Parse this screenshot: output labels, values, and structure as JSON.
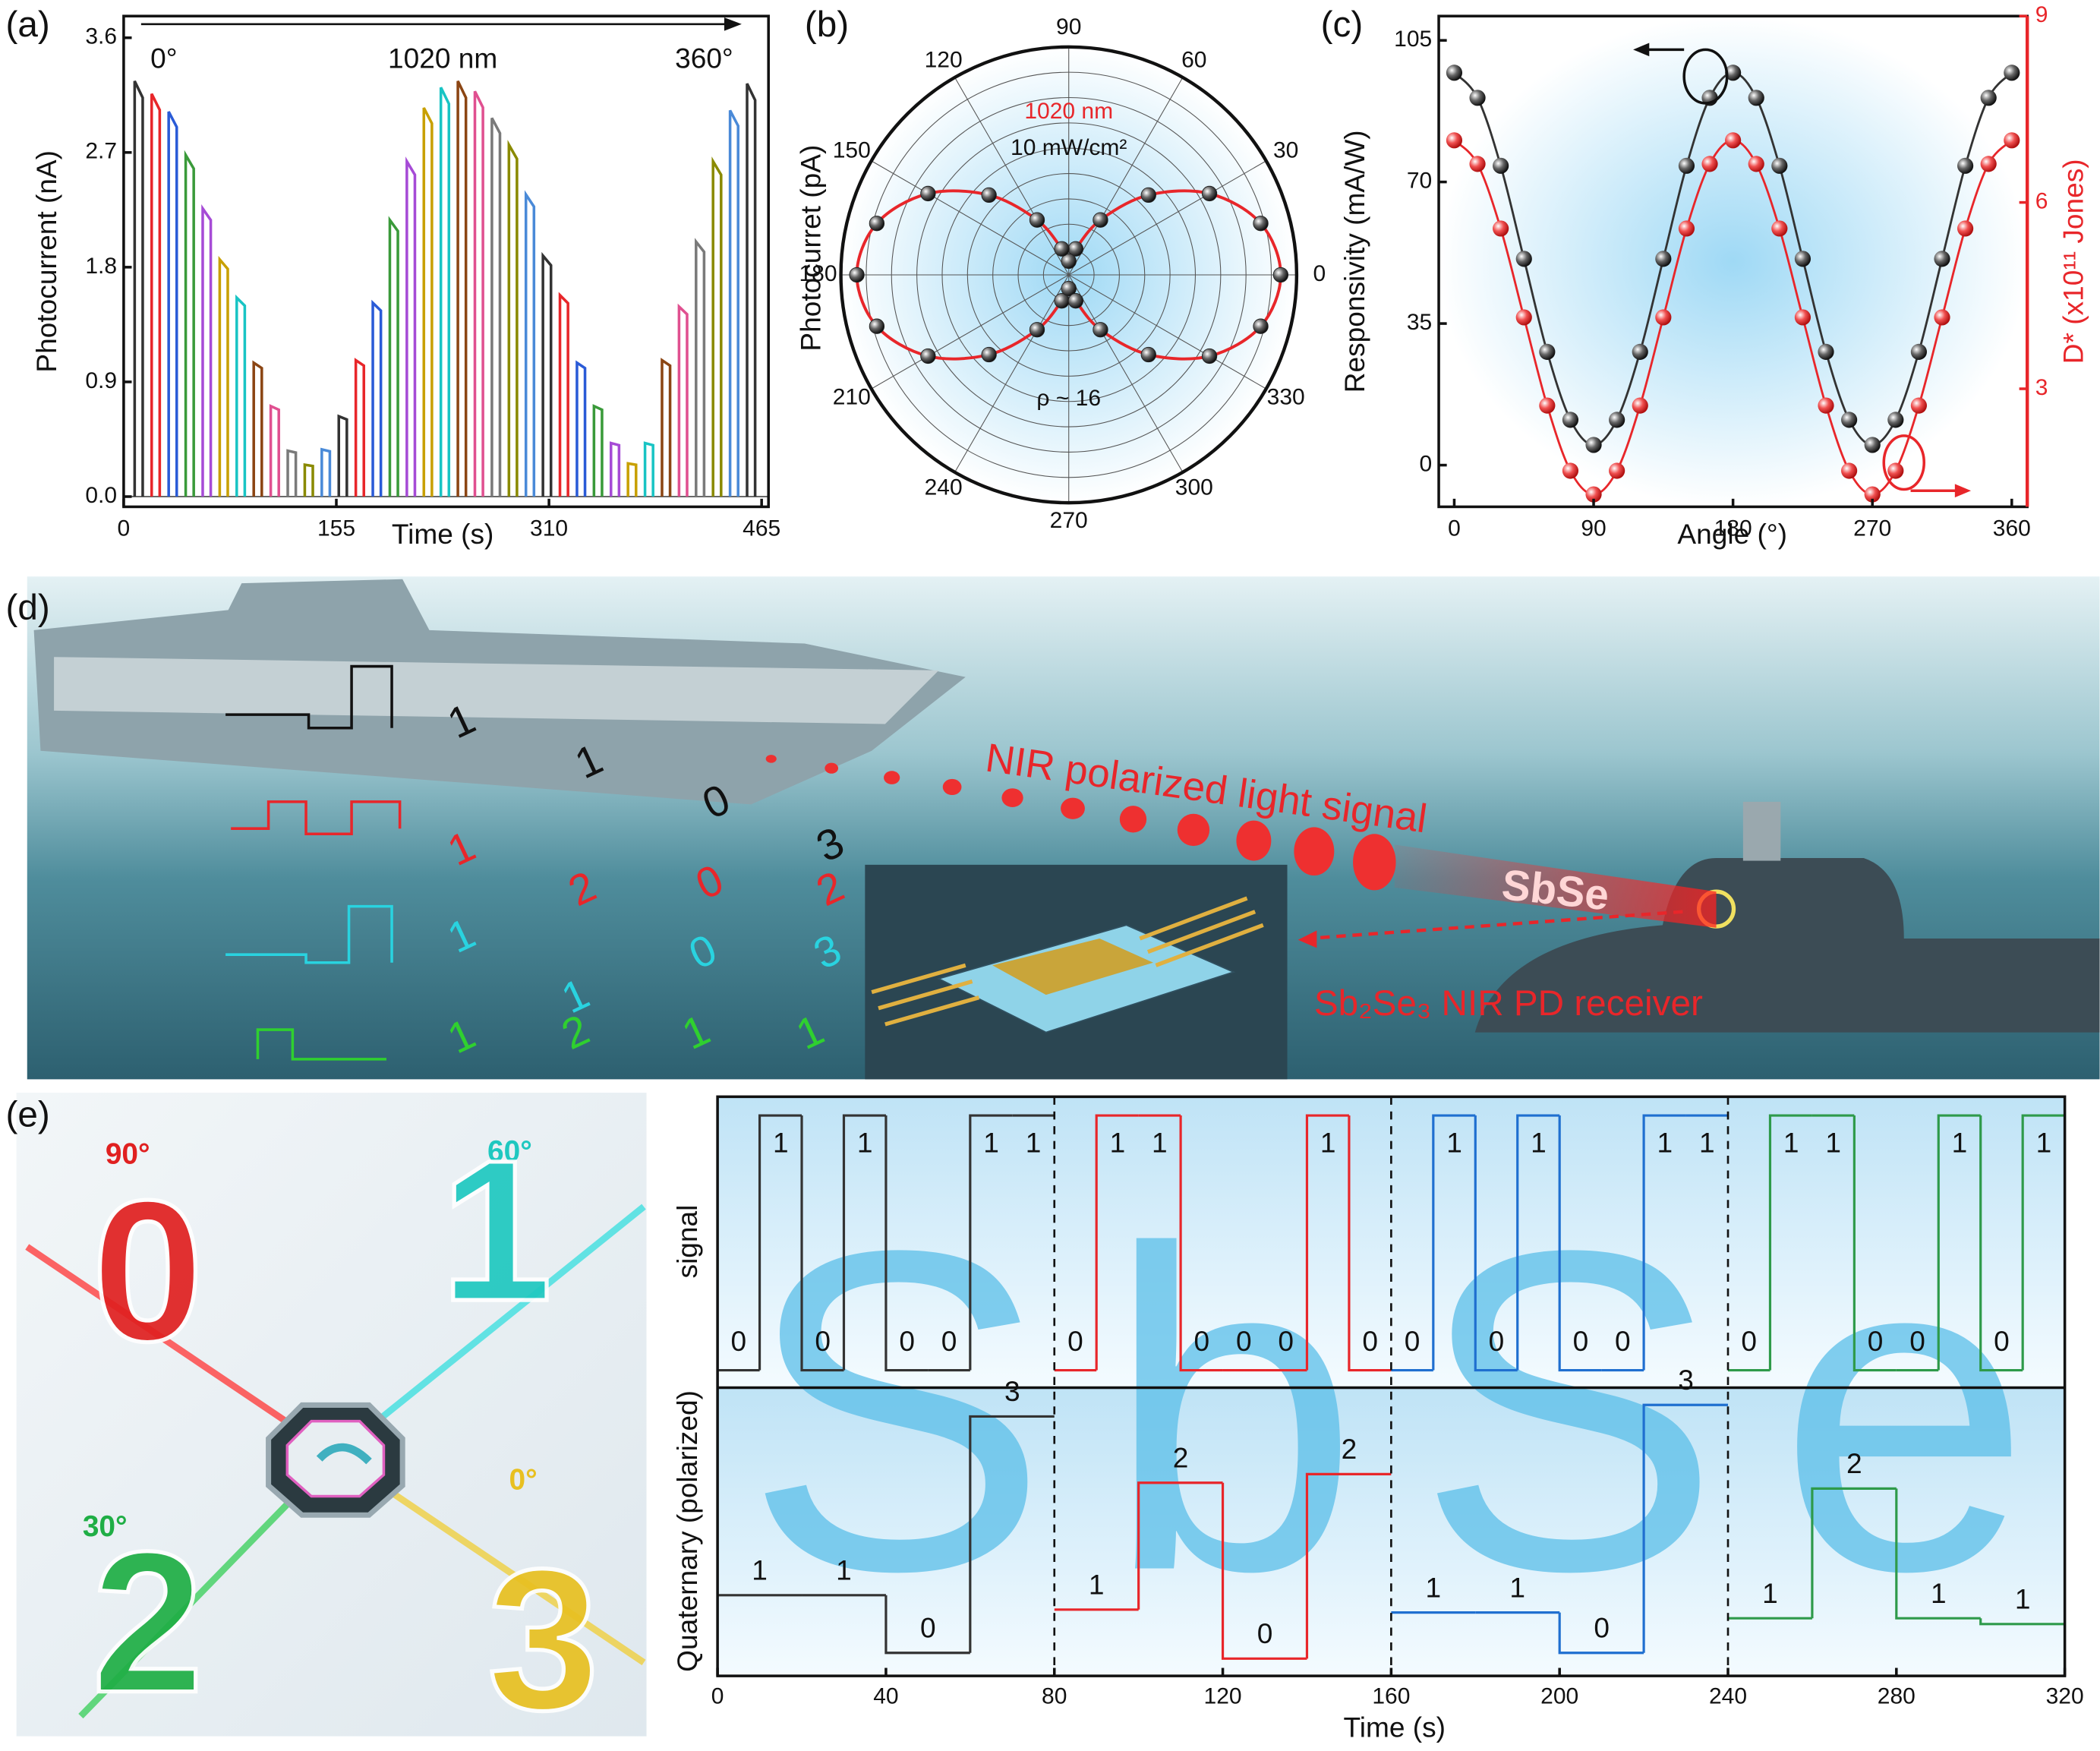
{
  "panel_labels": [
    "(a)",
    "(b)",
    "(c)",
    "(d)",
    "(e)"
  ],
  "chart_data": [
    {
      "type": "pulse",
      "xlabel": "Time (s)",
      "ylabel": "Photocurrent (nA)",
      "annotations": [
        "0°",
        "1020 nm",
        "360°"
      ],
      "x": [
        8,
        20.4,
        32.8,
        45.2,
        57.6,
        70,
        82.4,
        94.8,
        107.2,
        119.6,
        132,
        144.4,
        156.8,
        169.2,
        181.6,
        194,
        206.4,
        218.8,
        231.2,
        243.6,
        256,
        268.4,
        280.8,
        293.2,
        305.6,
        318,
        330.4,
        342.8,
        355.2,
        367.6,
        380,
        392.4,
        404.8,
        417.2,
        429.6,
        442,
        454.4
      ],
      "values": [
        3.26,
        3.16,
        3.02,
        2.68,
        2.26,
        1.86,
        1.56,
        1.05,
        0.71,
        0.36,
        0.25,
        0.37,
        0.63,
        1.07,
        1.52,
        2.17,
        2.63,
        3.05,
        3.21,
        3.26,
        3.18,
        2.97,
        2.76,
        2.37,
        1.89,
        1.58,
        1.05,
        0.71,
        0.42,
        0.26,
        0.42,
        1.07,
        1.49,
        2.0,
        2.63,
        3.03,
        3.24
      ],
      "palette": [
        "#333333",
        "#e8262a",
        "#2a5bd7",
        "#3a9a3a",
        "#a64bd6",
        "#c8a000",
        "#19c4c4",
        "#8b4513",
        "#e05090",
        "#7a7a7a",
        "#8a8a00",
        "#4a8ad8"
      ],
      "xlim": [
        0,
        470
      ],
      "xticks": [
        0,
        155,
        310,
        465
      ],
      "ylim": [
        -0.08,
        3.77
      ],
      "yticks": [
        {
          "value": 0,
          "label": "0.0"
        },
        0.9,
        1.8,
        2.7,
        3.6
      ]
    },
    {
      "type": "polar",
      "ylabel": "Photocurret (pA)",
      "annotations": [
        "1020 nm",
        "10 mW/cm²",
        "ρ ~ 16"
      ],
      "theta": [
        0,
        15,
        30,
        45,
        60,
        75,
        90,
        105,
        120,
        135,
        150,
        165,
        180,
        195,
        210,
        225,
        240,
        255,
        270,
        285,
        300,
        315,
        330,
        345
      ],
      "values": [
        0.93,
        0.872,
        0.713,
        0.495,
        0.278,
        0.118,
        0.06,
        0.118,
        0.278,
        0.495,
        0.713,
        0.872,
        0.93,
        0.872,
        0.713,
        0.495,
        0.278,
        0.118,
        0.06,
        0.118,
        0.278,
        0.495,
        0.713,
        0.872
      ],
      "rlim": [
        0,
        1
      ],
      "thetaticks": [
        0,
        30,
        60,
        90,
        120,
        150,
        180,
        210,
        240,
        270,
        300,
        330
      ],
      "color": "#222222",
      "line_color": "#e8262a",
      "grid": true
    },
    {
      "type": "scatter-line",
      "xlabel": "Angle (°)",
      "ylabel": "Responsivity (mA/W)",
      "y2label": "D* (x10¹¹ Jones)",
      "x": [
        0,
        15,
        30,
        45,
        60,
        75,
        90,
        105,
        120,
        135,
        150,
        165,
        180,
        195,
        210,
        225,
        240,
        255,
        270,
        285,
        300,
        315,
        330,
        345,
        360
      ],
      "series": [
        {
          "color": "#333333",
          "values": [
            97,
            90.8,
            74,
            51,
            28,
            11.2,
            5,
            11.2,
            28,
            51,
            74,
            90.8,
            97,
            90.8,
            74,
            51,
            28,
            11.2,
            5,
            11.2,
            28,
            51,
            74,
            90.8,
            97
          ]
        },
        {
          "color": "#e8262a",
          "axis": "y2",
          "values": [
            7.0,
            6.62,
            5.58,
            4.15,
            2.73,
            1.68,
            1.3,
            1.68,
            2.73,
            4.15,
            5.58,
            6.62,
            7.0,
            6.62,
            5.58,
            4.15,
            2.73,
            1.68,
            1.3,
            1.68,
            2.73,
            4.15,
            5.58,
            6.62,
            7.0
          ]
        }
      ],
      "xlim": [
        -10,
        370
      ],
      "xticks": [
        0,
        90,
        180,
        270,
        360
      ],
      "ylim": [
        -10.3,
        111
      ],
      "yticks": [
        0,
        35,
        70,
        105
      ],
      "y2lim": [
        1.1,
        9
      ],
      "y2ticks": [
        3,
        6,
        9
      ]
    },
    {
      "type": "digital",
      "xlabel": "Time (s)",
      "ylabels": [
        "signal",
        "Quaternary (polarized)"
      ],
      "watermark": "SbSe",
      "bits": [
        [
          0,
          1,
          0,
          1,
          0,
          0,
          1,
          1
        ],
        [
          0,
          1,
          1,
          0,
          0,
          0,
          1,
          0
        ],
        [
          0,
          1,
          0,
          1,
          0,
          0,
          1,
          1
        ],
        [
          0,
          1,
          1,
          0,
          0,
          1,
          0,
          1
        ]
      ],
      "levels": [
        [
          1,
          1,
          0,
          3
        ],
        [
          1,
          2,
          0,
          2
        ],
        [
          1,
          1,
          0,
          3
        ],
        [
          1,
          2,
          1,
          1
        ]
      ],
      "current": [
        [
          0.28,
          0.28,
          0.08,
          0.9
        ],
        [
          0.23,
          0.67,
          0.06,
          0.7
        ],
        [
          0.22,
          0.22,
          0.08,
          0.94
        ],
        [
          0.2,
          0.65,
          0.2,
          0.18
        ]
      ],
      "colors": [
        "#333333",
        "#e8262a",
        "#1f6fd0",
        "#2e9a4a"
      ],
      "xlim": [
        0,
        320
      ],
      "xticks": [
        0,
        40,
        80,
        120,
        160,
        200,
        240,
        280,
        320
      ],
      "ylim": [
        0,
        1
      ]
    }
  ],
  "illustration_d": {
    "signal_text": "NIR polarized light signal",
    "receiver": "Sb₂Se₃ NIR PD receiver",
    "beam_text": "SbSe",
    "digits": [
      [
        1,
        1,
        0,
        3
      ],
      [
        1,
        2,
        0,
        2
      ],
      [
        1,
        1,
        0,
        3
      ],
      [
        1,
        2,
        1,
        1
      ]
    ],
    "digit_colors": [
      "#111111",
      "#e8262a",
      "#29d3e0",
      "#2fd02f"
    ]
  },
  "illustration_e": {
    "items": [
      {
        "angle": "90°",
        "digit": 0,
        "color": "#e02020"
      },
      {
        "angle": "60°",
        "digit": 1,
        "color": "#1fc8c0"
      },
      {
        "angle": "30°",
        "digit": 2,
        "color": "#1fae45"
      },
      {
        "angle": "0°",
        "digit": 3,
        "color": "#e8c020"
      }
    ]
  }
}
